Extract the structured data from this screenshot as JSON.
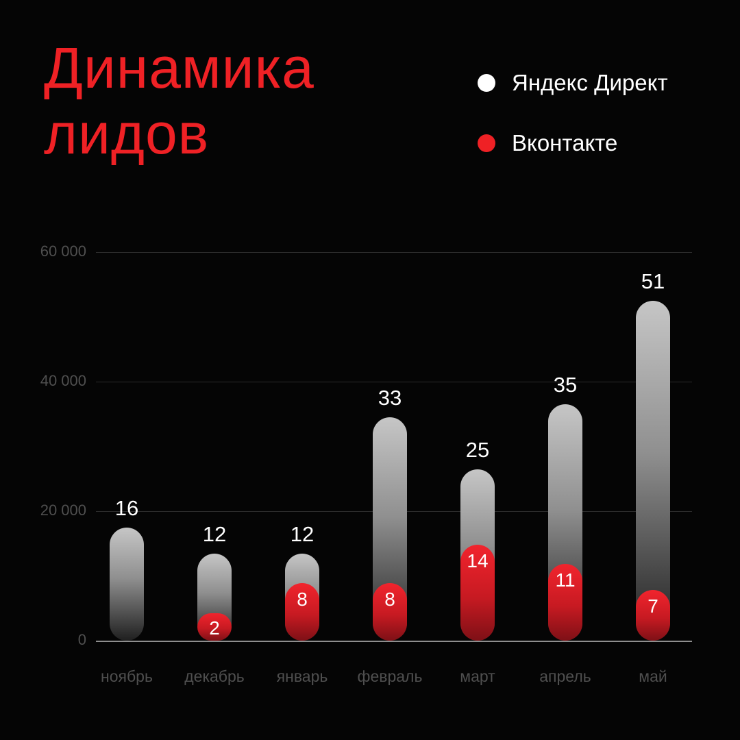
{
  "page": {
    "background_color": "#050505"
  },
  "header": {
    "title_line1": "Динамика",
    "title_line2": "лидов",
    "title_color": "#ef2125"
  },
  "legend": {
    "items": [
      {
        "label": "Яндекс Директ",
        "color": "#ffffff"
      },
      {
        "label": "Вконтакте",
        "color": "#ef2125"
      }
    ]
  },
  "chart_data": {
    "type": "bar",
    "title": "Динамика лидов",
    "categories": [
      "ноябрь",
      "декабрь",
      "январь",
      "февраль",
      "март",
      "апрель",
      "май"
    ],
    "series": [
      {
        "name": "Яндекс Директ",
        "values": [
          16,
          12,
          12,
          33,
          25,
          35,
          51
        ],
        "color_top": "#c6c6c6",
        "color_bottom": "#1f1f1f"
      },
      {
        "name": "Вконтакте",
        "values": [
          null,
          2,
          8,
          8,
          14,
          11,
          7
        ],
        "color_top": "#f1242d",
        "color_bottom": "#7e1016"
      }
    ],
    "y_ticks": [
      "60 000",
      "40 000",
      "20 000",
      "0"
    ],
    "y_tick_values": [
      60000,
      40000,
      20000,
      0
    ],
    "ylim": [
      0,
      60000
    ],
    "value_unit_scale": 1000,
    "grid": true,
    "legend_position": "top-right",
    "style": "stacked overlay, rounded pill bars on black background"
  }
}
